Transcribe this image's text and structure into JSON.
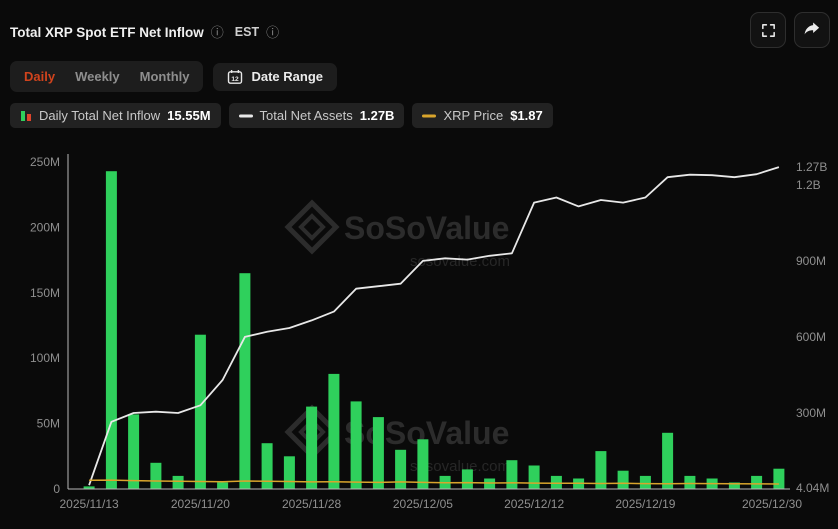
{
  "theme": {
    "bg": "#0a0a0a",
    "panel": "#1d1d1d",
    "pill": "#222222",
    "text": "#f0f0f0",
    "muted": "#8f8f8f",
    "accent": "#d0431d"
  },
  "header": {
    "title": "Total XRP Spot ETF Net Inflow",
    "timezone": "EST"
  },
  "toolbar": {
    "tabs": [
      {
        "label": "Daily",
        "active": true
      },
      {
        "label": "Weekly",
        "active": false
      },
      {
        "label": "Monthly",
        "active": false
      }
    ],
    "date_range_label": "Date Range",
    "calendar_icon_text": "12"
  },
  "legend": [
    {
      "label": "Daily Total Net Inflow",
      "value": "15.55M",
      "color": "#2fd05c",
      "color2": "#e0452c"
    },
    {
      "label": "Total Net Assets",
      "value": "1.27B",
      "color": "#e8e8e8"
    },
    {
      "label": "XRP Price",
      "value": "$1.87",
      "color": "#d9a52c"
    }
  ],
  "watermark": {
    "brand": "SoSoValue",
    "domain": "sosovalue.com"
  },
  "chart_data": {
    "type": "bar+line",
    "title": "Total XRP Spot ETF Net Inflow",
    "x_range": [
      "2025/11/13",
      "2025/12/30"
    ],
    "x_ticks": [
      {
        "index": 0,
        "label": "2025/11/13"
      },
      {
        "index": 5,
        "label": "2025/11/20"
      },
      {
        "index": 10,
        "label": "2025/11/28"
      },
      {
        "index": 15,
        "label": "2025/12/05"
      },
      {
        "index": 20,
        "label": "2025/12/12"
      },
      {
        "index": 25,
        "label": "2025/12/19"
      },
      {
        "index": 31,
        "label": "2025/12/30"
      }
    ],
    "left_axis": {
      "title": "Daily Net Inflow (USD)",
      "max": 250,
      "tick_values": [
        0,
        50,
        100,
        150,
        200,
        250
      ],
      "tick_labels": [
        "0",
        "50M",
        "100M",
        "150M",
        "200M",
        "250M"
      ]
    },
    "right_axis": {
      "title": "Total Net Assets (USD)",
      "max": 1290,
      "tick_values": [
        4.04,
        300,
        600,
        900,
        1200,
        1270
      ],
      "tick_labels": [
        "4.04M",
        "300M",
        "600M",
        "900M",
        "1.2B",
        "1.27B"
      ]
    },
    "grid": false,
    "legend_position": "top",
    "series": [
      {
        "name": "Daily Total Net Inflow",
        "type": "bar",
        "color": "#2fd05c",
        "unit": "M USD",
        "values": [
          2,
          243,
          57,
          20,
          10,
          118,
          5,
          165,
          35,
          25,
          63,
          88,
          67,
          55,
          30,
          38,
          10,
          15,
          8,
          22,
          18,
          10,
          8,
          29,
          14,
          10,
          43,
          10,
          8,
          5,
          10,
          15.55
        ]
      },
      {
        "name": "Total Net Assets",
        "type": "line",
        "color": "#e8e8e8",
        "unit": "M USD",
        "values": [
          15,
          265,
          300,
          305,
          300,
          330,
          430,
          600,
          620,
          635,
          665,
          700,
          790,
          800,
          810,
          900,
          910,
          905,
          920,
          930,
          1130,
          1150,
          1115,
          1140,
          1130,
          1150,
          1230,
          1240,
          1238,
          1230,
          1242,
          1270
        ]
      },
      {
        "name": "XRP Price",
        "type": "line",
        "color": "#d9a52c",
        "unit": "USD",
        "values": [
          2.28,
          2.3,
          2.25,
          2.2,
          2.18,
          2.15,
          2.12,
          2.2,
          2.18,
          2.15,
          2.1,
          2.12,
          2.08,
          2.05,
          2.1,
          2.05,
          2.0,
          2.02,
          1.98,
          2.0,
          1.97,
          1.95,
          1.96,
          1.93,
          1.95,
          1.92,
          1.9,
          1.93,
          1.91,
          1.89,
          1.88,
          1.87
        ]
      }
    ]
  }
}
